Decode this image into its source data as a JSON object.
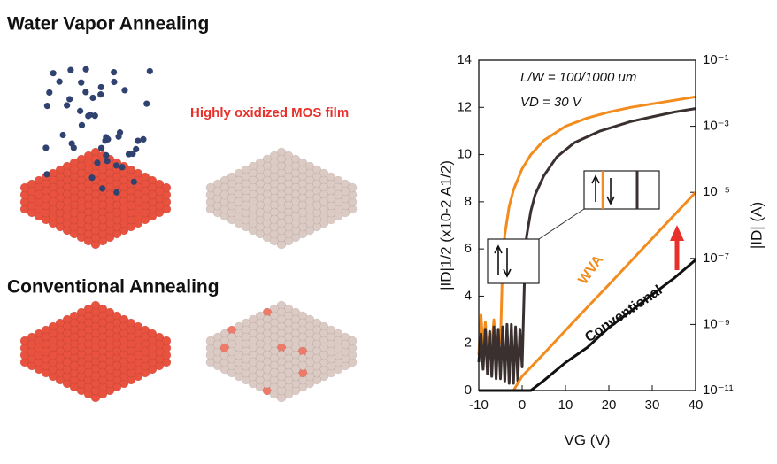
{
  "figure": {
    "top_title": "Water Vapor Annealing",
    "film_label": "Highly oxidized MOS film",
    "bottom_title": "Conventional Annealing"
  },
  "chart_data": {
    "type": "line",
    "xlabel": "VG (V)",
    "ylabel": "|ID|1/2 (x10-2 A1/2)",
    "y2label": "|ID| (A)",
    "annotations": [
      "L/W = 100/1000 um",
      "VD = 30 V"
    ],
    "xlim": [
      -10,
      40
    ],
    "xticks": [
      -10,
      0,
      10,
      20,
      30,
      40
    ],
    "ylim": [
      0,
      14
    ],
    "yticks": [
      0,
      2,
      4,
      6,
      8,
      10,
      12,
      14
    ],
    "y2lim": [
      1e-11,
      0.1
    ],
    "y2log": true,
    "y2ticks": [
      {
        "value": 1e-11,
        "label": "10⁻¹¹"
      },
      {
        "value": 1e-09,
        "label": "10⁻⁹"
      },
      {
        "value": 1e-07,
        "label": "10⁻⁷"
      },
      {
        "value": 1e-05,
        "label": "10⁻⁵"
      },
      {
        "value": 0.001,
        "label": "10⁻³"
      },
      {
        "value": 0.1,
        "label": "10⁻¹"
      }
    ],
    "series": [
      {
        "color": "#f28c1e",
        "x": [
          -10,
          -9.5,
          -9,
          -8.5,
          -8,
          -7.5,
          -7,
          -6.5,
          -6,
          -5.5,
          -5,
          -4.5,
          -4,
          -3,
          -2,
          0,
          2,
          5,
          10,
          15,
          20,
          25,
          30,
          35,
          40
        ],
        "values": [
          1.5,
          3.2,
          1.8,
          2.9,
          1.6,
          2.5,
          1.9,
          3.0,
          1.7,
          2.4,
          2.0,
          5.5,
          6.6,
          7.8,
          8.5,
          9.4,
          10,
          10.6,
          11.2,
          11.55,
          11.8,
          12.0,
          12.15,
          12.3,
          12.45
        ]
      },
      {
        "color": "#3a3030",
        "x": [
          -10,
          -9.5,
          -9,
          -8.5,
          -8,
          -7.5,
          -7,
          -6.5,
          -6,
          -5.5,
          -5,
          -4.5,
          -4,
          -3.5,
          -3,
          -2.5,
          -2,
          -1.5,
          -1,
          -0.5,
          0,
          0.5,
          1,
          2,
          3,
          5,
          8,
          12,
          18,
          25,
          30,
          35,
          40
        ],
        "values": [
          1.2,
          2.4,
          0.9,
          2.6,
          0.7,
          2.5,
          0.6,
          2.7,
          0.5,
          2.6,
          0.5,
          2.7,
          0.4,
          2.8,
          0.3,
          2.8,
          0.3,
          2.7,
          0.4,
          2.6,
          1.0,
          4.5,
          6.5,
          7.6,
          8.3,
          9.1,
          9.9,
          10.5,
          11,
          11.4,
          11.6,
          11.8,
          11.95
        ]
      },
      {
        "name": "WVA",
        "color": "#f28c1e",
        "axis": "y2",
        "x": [
          -10,
          -5,
          -2,
          0,
          5,
          10,
          15,
          20,
          25,
          30,
          35,
          40
        ],
        "values": [
          1e-11,
          1e-11,
          1e-11,
          2.7e-11,
          1.3e-10,
          6.6e-10,
          3.3e-09,
          1.6e-08,
          8e-08,
          4e-07,
          2e-06,
          1e-05
        ]
      },
      {
        "name": "Conventional",
        "color": "#111111",
        "axis": "y2",
        "x": [
          -10,
          0,
          2,
          5,
          10,
          15,
          20,
          25,
          30,
          35,
          40
        ],
        "values": [
          1e-11,
          1e-11,
          1e-11,
          2e-11,
          7e-11,
          2e-10,
          8e-10,
          2.5e-09,
          8e-09,
          2.5e-08,
          9e-08
        ]
      }
    ]
  }
}
